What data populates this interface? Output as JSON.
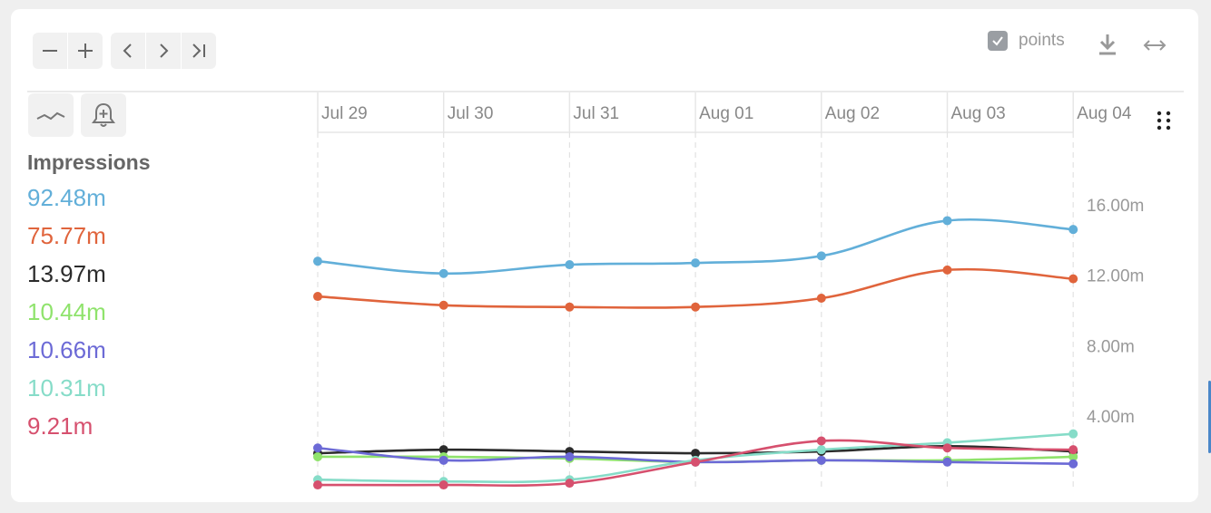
{
  "toolbar": {
    "zoom_out_icon": "minus-icon",
    "zoom_in_icon": "plus-icon",
    "prev_icon": "chevron-left-icon",
    "next_icon": "chevron-right-icon",
    "end_icon": "skip-to-end-icon",
    "points_label": "points",
    "points_checked": true
  },
  "legend": {
    "title": "Impressions",
    "items": [
      {
        "value": "92.48m",
        "color": "#62afd9"
      },
      {
        "value": "75.77m",
        "color": "#e0643c"
      },
      {
        "value": "13.97m",
        "color": "#2b2b2b"
      },
      {
        "value": "10.44m",
        "color": "#8fe36c"
      },
      {
        "value": "10.66m",
        "color": "#6c6ad6"
      },
      {
        "value": "10.31m",
        "color": "#86dcc8"
      },
      {
        "value": "9.21m",
        "color": "#d6506e"
      }
    ]
  },
  "chart_data": {
    "type": "line",
    "x": [
      "Jul 29",
      "Jul 30",
      "Jul 31",
      "Aug 01",
      "Aug 02",
      "Aug 03",
      "Aug 04"
    ],
    "ylim": [
      0,
      20
    ],
    "yticks": [
      4,
      8,
      12,
      16
    ],
    "ytick_labels": [
      "4.00m",
      "8.00m",
      "12.00m",
      "16.00m"
    ],
    "grid": true,
    "series": [
      {
        "color": "#62afd9",
        "values": [
          12.8,
          12.1,
          12.6,
          12.7,
          13.1,
          15.1,
          14.6
        ]
      },
      {
        "color": "#e0643c",
        "values": [
          10.8,
          10.3,
          10.2,
          10.2,
          10.7,
          12.3,
          11.8
        ]
      },
      {
        "color": "#2b2b2b",
        "values": [
          1.9,
          2.1,
          2.0,
          1.9,
          2.0,
          2.3,
          2.0
        ]
      },
      {
        "color": "#8fe36c",
        "values": [
          1.7,
          1.7,
          1.6,
          1.4,
          1.5,
          1.5,
          1.7
        ]
      },
      {
        "color": "#6c6ad6",
        "values": [
          2.2,
          1.5,
          1.7,
          1.4,
          1.5,
          1.4,
          1.3
        ]
      },
      {
        "color": "#86dcc8",
        "values": [
          0.4,
          0.3,
          0.4,
          1.5,
          2.1,
          2.5,
          3.0
        ]
      },
      {
        "color": "#d6506e",
        "values": [
          0.1,
          0.1,
          0.2,
          1.4,
          2.6,
          2.2,
          2.1
        ]
      }
    ]
  }
}
